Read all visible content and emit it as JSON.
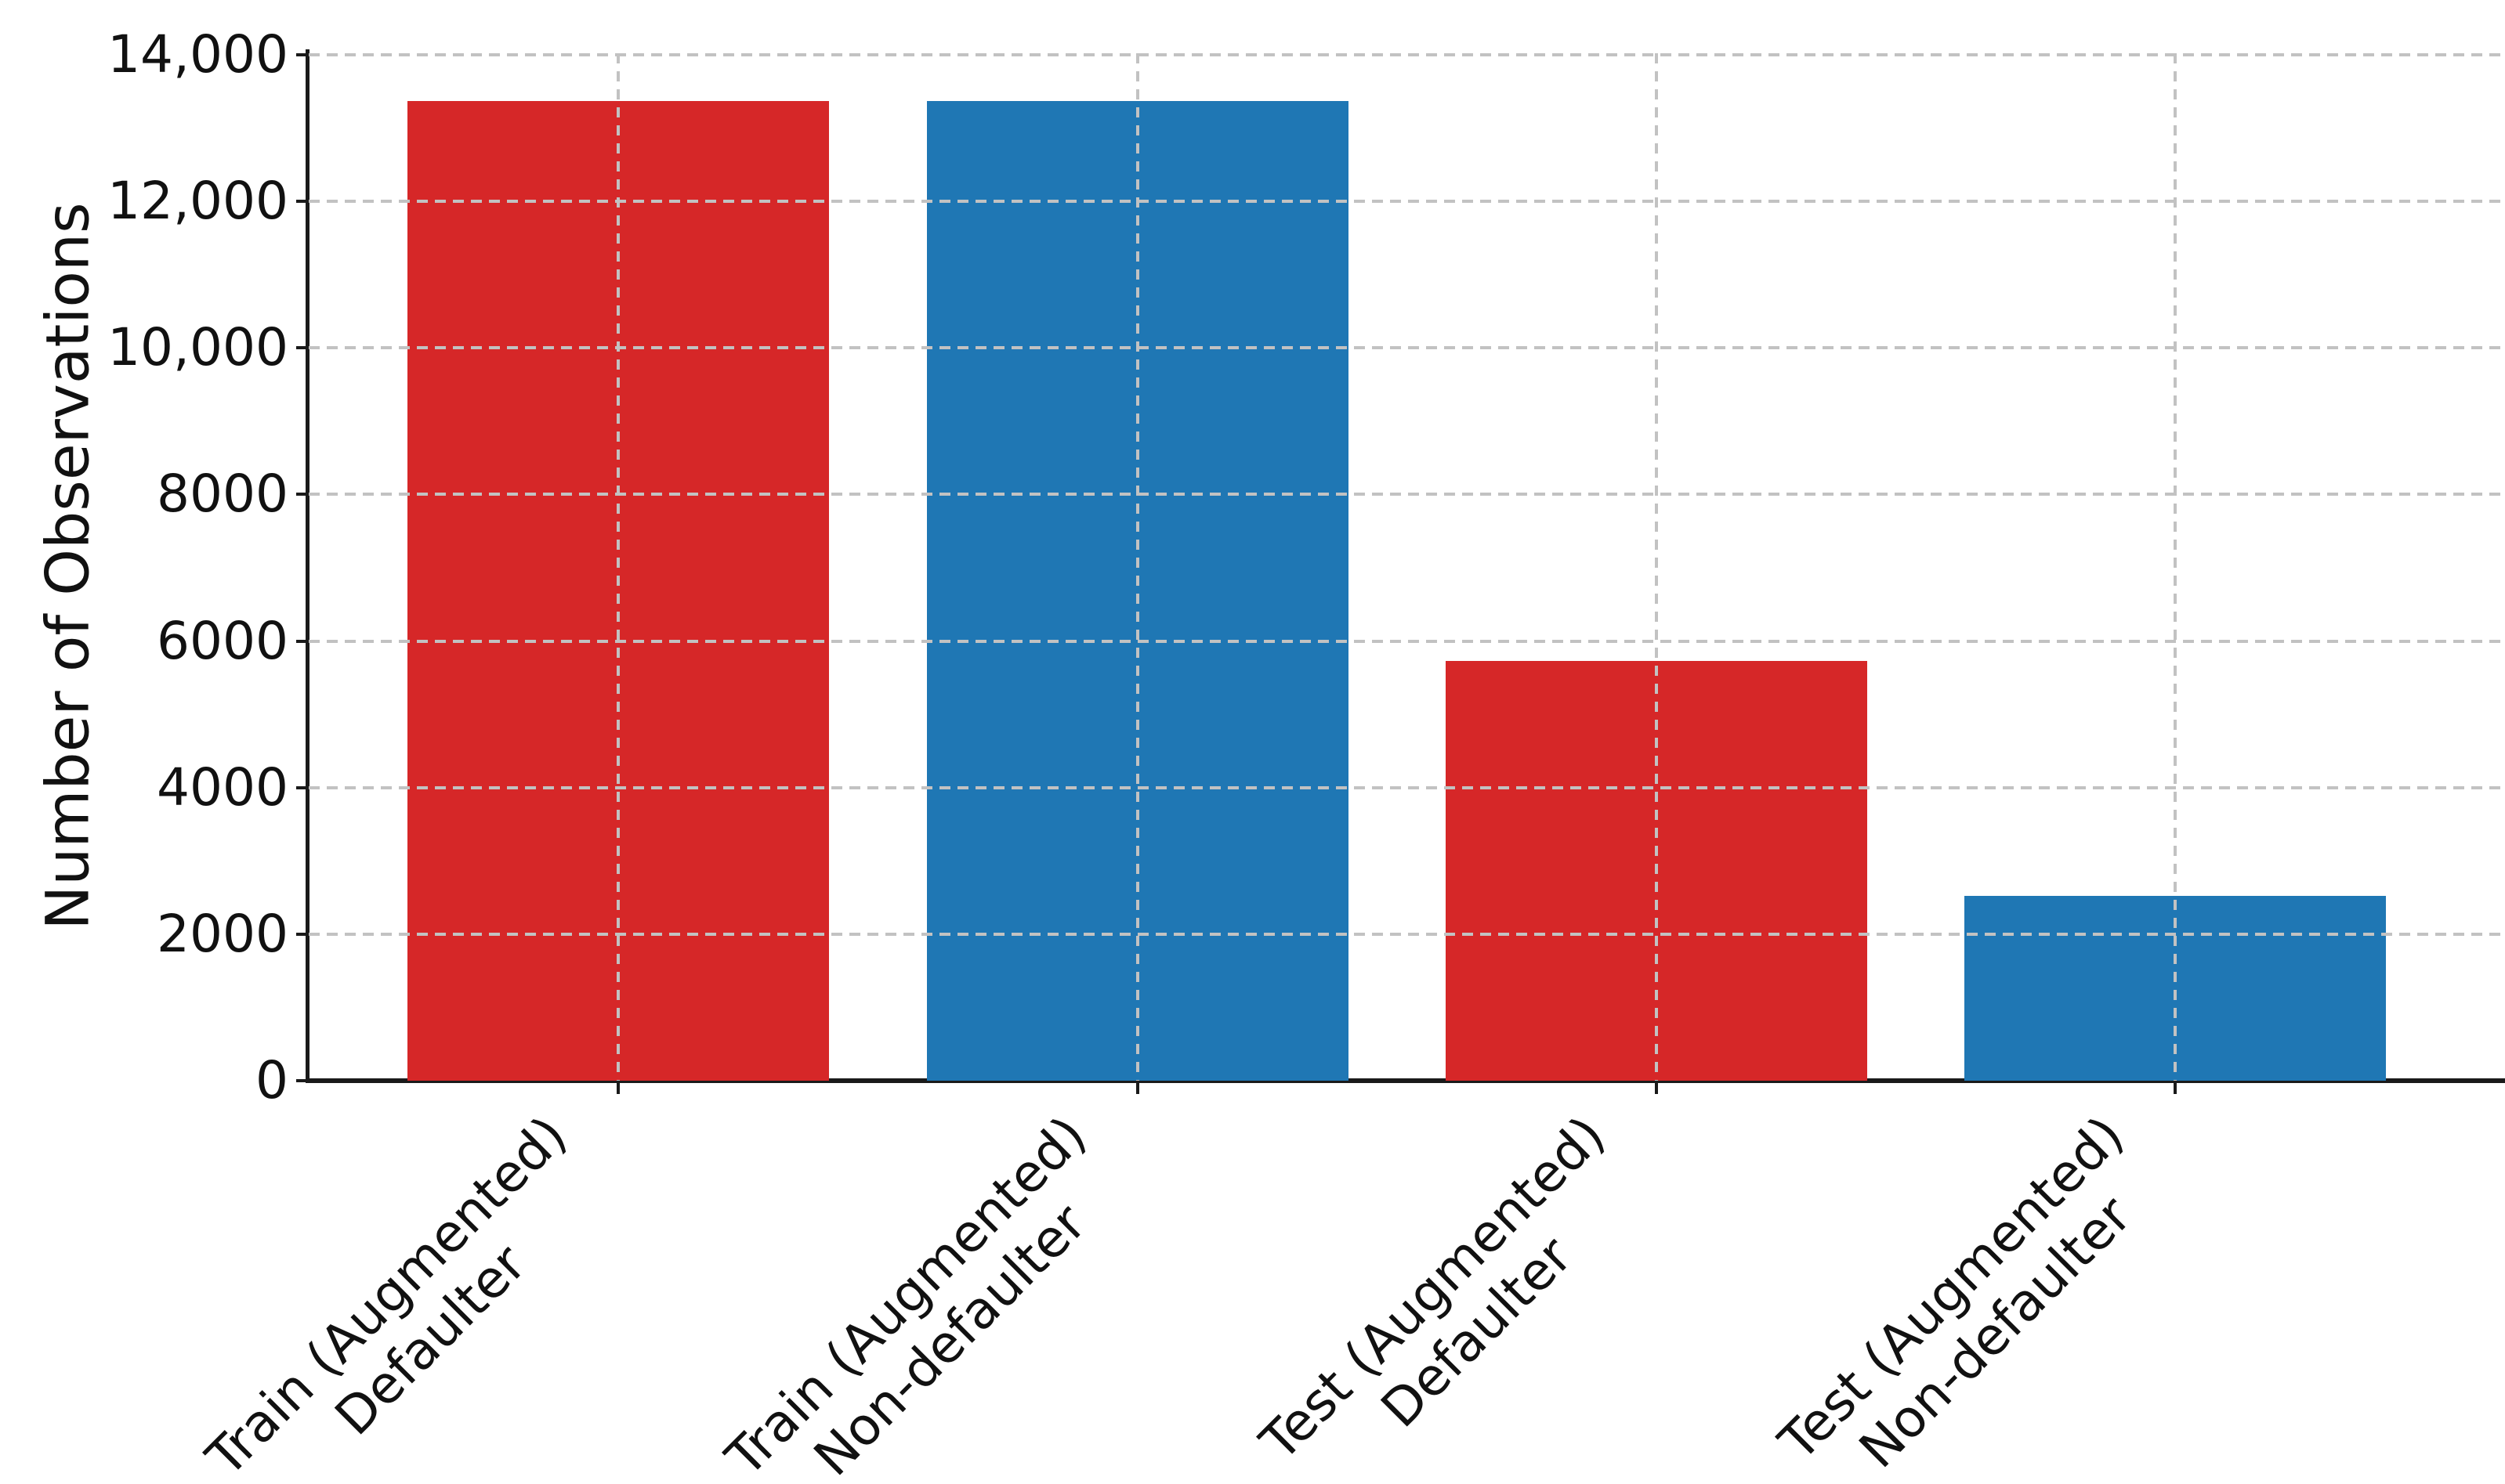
{
  "chart_data": {
    "type": "bar",
    "title": "",
    "xlabel": "",
    "ylabel": "Number of Observations",
    "categories": [
      [
        "Train (Augmented)",
        "Defaulter"
      ],
      [
        "Train (Augmented)",
        "Non-defaulter"
      ],
      [
        "Test (Augmented)",
        "Defaulter"
      ],
      [
        "Test (Augmented)",
        "Non-defaulter"
      ]
    ],
    "values": [
      13370,
      13370,
      5730,
      2520
    ],
    "bar_colors": [
      "#d62728",
      "#1f77b4",
      "#d62728",
      "#1f77b4"
    ],
    "ylim": [
      0,
      14000
    ],
    "yticks": [
      {
        "value": 0,
        "label": "0"
      },
      {
        "value": 2000,
        "label": "2000"
      },
      {
        "value": 4000,
        "label": "4000"
      },
      {
        "value": 6000,
        "label": "6000"
      },
      {
        "value": 8000,
        "label": "8000"
      },
      {
        "value": 10000,
        "label": "10,000"
      },
      {
        "value": 12000,
        "label": "12,000"
      },
      {
        "value": 14000,
        "label": "14,000"
      }
    ],
    "grid": {
      "visible": true,
      "linestyle": "dashed",
      "color": "#c2c2c2",
      "drawn_over_bars": true
    },
    "legend": null,
    "x_tick_label_rotation_deg": 45,
    "axis_color": "#1a1a1a",
    "background_color": "#ffffff"
  }
}
